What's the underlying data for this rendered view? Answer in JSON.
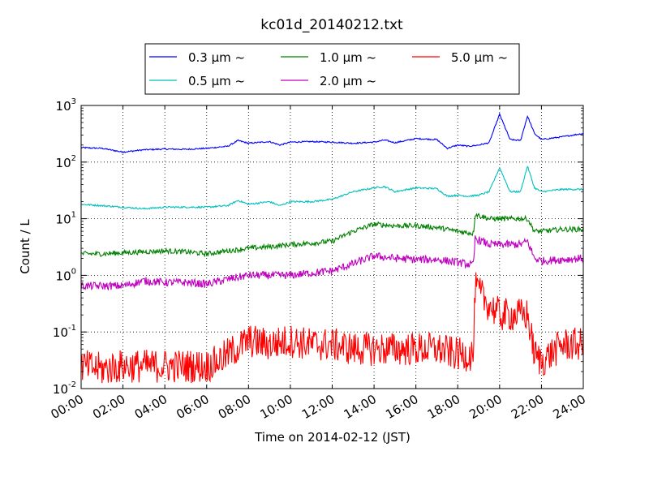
{
  "chart_data": {
    "type": "line",
    "title": "kc01d_20140212.txt",
    "xlabel": "Time on 2014-02-12 (JST)",
    "ylabel": "Count / L",
    "yscale": "log",
    "ylim": [
      0.01,
      1000
    ],
    "xlim": [
      "00:00",
      "24:00"
    ],
    "grid": true,
    "legend_position": "top",
    "x_ticks": [
      "00:00",
      "02:00",
      "04:00",
      "06:00",
      "08:00",
      "10:00",
      "12:00",
      "14:00",
      "16:00",
      "18:00",
      "20:00",
      "22:00",
      "24:00"
    ],
    "y_ticks": [
      {
        "base": "10",
        "exp": "-2"
      },
      {
        "base": "10",
        "exp": "-1"
      },
      {
        "base": "10",
        "exp": "0"
      },
      {
        "base": "10",
        "exp": "1"
      },
      {
        "base": "10",
        "exp": "2"
      },
      {
        "base": "10",
        "exp": "3"
      }
    ],
    "series": [
      {
        "name": "0.3 μm ~",
        "color": "#0000ff",
        "noise": 0.012,
        "x": [
          "00:00",
          "01:00",
          "02:00",
          "03:00",
          "04:00",
          "05:00",
          "06:00",
          "07:00",
          "07:30",
          "08:00",
          "09:00",
          "09:30",
          "10:00",
          "11:00",
          "12:00",
          "13:00",
          "14:00",
          "14:30",
          "15:00",
          "16:00",
          "17:00",
          "17:30",
          "18:00",
          "18:30",
          "19:00",
          "19:30",
          "20:00",
          "20:30",
          "21:00",
          "21:20",
          "21:40",
          "22:00",
          "23:00",
          "24:00"
        ],
        "values": [
          180,
          175,
          150,
          165,
          170,
          168,
          175,
          190,
          240,
          215,
          230,
          200,
          225,
          230,
          225,
          215,
          225,
          245,
          220,
          260,
          250,
          175,
          200,
          190,
          200,
          220,
          700,
          250,
          240,
          650,
          320,
          250,
          280,
          320
        ]
      },
      {
        "name": "0.5 μm ~",
        "color": "#00bfbf",
        "noise": 0.015,
        "x": [
          "00:00",
          "01:00",
          "02:00",
          "03:00",
          "04:00",
          "05:00",
          "06:00",
          "07:00",
          "07:30",
          "08:00",
          "09:00",
          "09:30",
          "10:00",
          "11:00",
          "12:00",
          "13:00",
          "14:00",
          "14:30",
          "15:00",
          "16:00",
          "17:00",
          "17:30",
          "18:00",
          "18:30",
          "19:00",
          "19:30",
          "20:00",
          "20:30",
          "21:00",
          "21:20",
          "21:40",
          "22:00",
          "23:00",
          "24:00"
        ],
        "values": [
          18,
          17,
          16,
          15,
          16,
          16,
          16,
          17,
          21,
          18,
          20,
          17,
          20,
          20,
          22,
          30,
          35,
          37,
          30,
          35,
          34,
          25,
          26,
          25,
          26,
          30,
          80,
          30,
          30,
          85,
          35,
          30,
          33,
          33
        ]
      },
      {
        "name": "1.0 μm ~",
        "color": "#008000",
        "noise": 0.045,
        "x": [
          "00:00",
          "01:00",
          "02:00",
          "03:00",
          "04:00",
          "05:00",
          "06:00",
          "07:00",
          "08:00",
          "09:00",
          "10:00",
          "11:00",
          "12:00",
          "13:00",
          "14:00",
          "15:00",
          "16:00",
          "17:00",
          "18:00",
          "18:45",
          "18:50",
          "19:30",
          "20:00",
          "21:00",
          "21:20",
          "21:40",
          "22:00",
          "23:00",
          "24:00"
        ],
        "values": [
          2.4,
          2.4,
          2.5,
          2.6,
          2.7,
          2.6,
          2.4,
          2.7,
          3.0,
          3.2,
          3.5,
          3.7,
          4.0,
          6.0,
          8.0,
          7.5,
          7.5,
          7.0,
          6.0,
          5.5,
          12,
          10,
          10,
          10,
          10,
          6,
          6,
          6.5,
          6.5
        ]
      },
      {
        "name": "2.0 μm ~",
        "color": "#bf00bf",
        "noise": 0.07,
        "x": [
          "00:00",
          "01:00",
          "02:00",
          "03:00",
          "04:00",
          "05:00",
          "06:00",
          "07:00",
          "08:00",
          "09:00",
          "10:00",
          "11:00",
          "12:00",
          "13:00",
          "14:00",
          "15:00",
          "16:00",
          "17:00",
          "18:00",
          "18:45",
          "18:50",
          "19:30",
          "20:00",
          "21:00",
          "21:20",
          "21:40",
          "22:00",
          "23:00",
          "24:00"
        ],
        "values": [
          0.65,
          0.65,
          0.65,
          0.8,
          0.75,
          0.75,
          0.7,
          0.85,
          1.0,
          1.0,
          1.0,
          1.1,
          1.2,
          1.6,
          2.2,
          2.0,
          1.9,
          1.9,
          1.7,
          1.5,
          4.5,
          3.5,
          3.5,
          3.5,
          4,
          2,
          1.8,
          1.9,
          2.0
        ]
      },
      {
        "name": "5.0 μm ~",
        "color": "#ff0000",
        "noise": 0.3,
        "x": [
          "00:00",
          "01:00",
          "02:00",
          "03:00",
          "04:00",
          "05:00",
          "06:00",
          "06:30",
          "07:00",
          "08:00",
          "09:00",
          "10:00",
          "11:00",
          "12:00",
          "13:00",
          "14:00",
          "15:00",
          "16:00",
          "17:00",
          "18:00",
          "18:45",
          "18:50",
          "19:30",
          "20:00",
          "20:30",
          "21:00",
          "21:20",
          "21:40",
          "22:00",
          "23:00",
          "24:00"
        ],
        "values": [
          0.025,
          0.022,
          0.025,
          0.025,
          0.025,
          0.025,
          0.025,
          0.03,
          0.04,
          0.07,
          0.06,
          0.07,
          0.06,
          0.06,
          0.05,
          0.05,
          0.05,
          0.05,
          0.05,
          0.04,
          0.04,
          0.6,
          0.3,
          0.2,
          0.2,
          0.2,
          0.2,
          0.04,
          0.03,
          0.06,
          0.06
        ]
      }
    ]
  }
}
